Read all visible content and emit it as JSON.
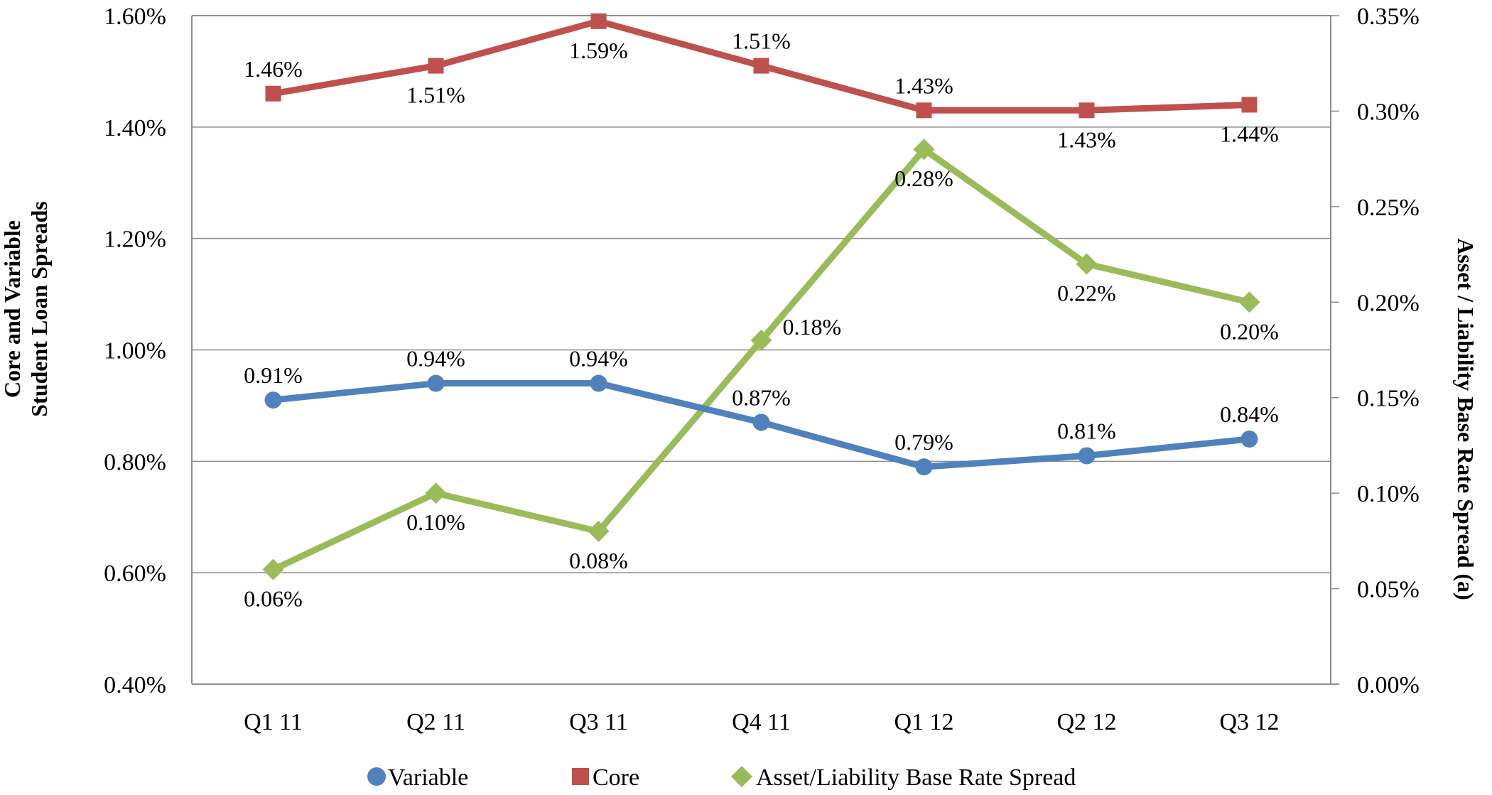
{
  "chart_data": {
    "type": "line",
    "title": "",
    "xlabel": "",
    "ylabel": [
      "Core and Variable",
      "Student Loan Spreads"
    ],
    "y2label": "Asset / Liability Base Rate Spread (a)",
    "categories": [
      "Q1 11",
      "Q2 11",
      "Q3 11",
      "Q4 11",
      "Q1 12",
      "Q2 12",
      "Q3 12"
    ],
    "ylim": [
      0.4,
      1.6
    ],
    "y_ticks": [
      0.4,
      0.6,
      0.8,
      1.0,
      1.2,
      1.4,
      1.6
    ],
    "y_tick_labels": [
      "0.40%",
      "0.60%",
      "0.80%",
      "1.00%",
      "1.20%",
      "1.40%",
      "1.60%"
    ],
    "y2lim": [
      0.0,
      0.35
    ],
    "y2_ticks": [
      0.0,
      0.05,
      0.1,
      0.15,
      0.2,
      0.25,
      0.3,
      0.35
    ],
    "y2_tick_labels": [
      "0.00%",
      "0.05%",
      "0.10%",
      "0.15%",
      "0.20%",
      "0.25%",
      "0.30%",
      "0.35%"
    ],
    "grid": true,
    "legend_position": "bottom",
    "series": [
      {
        "name": "Variable",
        "axis": "left",
        "color": "#4F81BD",
        "marker": "circle",
        "values": [
          0.91,
          0.94,
          0.94,
          0.87,
          0.79,
          0.81,
          0.84
        ],
        "labels": [
          "0.91%",
          "0.94%",
          "0.94%",
          "0.87%",
          "0.79%",
          "0.81%",
          "0.84%"
        ],
        "label_side": [
          "above",
          "above",
          "above",
          "above",
          "above",
          "above",
          "above"
        ]
      },
      {
        "name": "Core",
        "axis": "left",
        "color": "#C0504D",
        "marker": "square",
        "values": [
          1.46,
          1.51,
          1.59,
          1.51,
          1.43,
          1.43,
          1.44
        ],
        "labels": [
          "1.46%",
          "1.51%",
          "1.59%",
          "1.51%",
          "1.43%",
          "1.43%",
          "1.44%"
        ],
        "label_side": [
          "above",
          "below",
          "below",
          "above",
          "above",
          "below",
          "below"
        ]
      },
      {
        "name": "Asset/Liability Base Rate Spread",
        "axis": "right",
        "color": "#9BBB59",
        "marker": "diamond",
        "values": [
          0.06,
          0.1,
          0.08,
          0.18,
          0.28,
          0.22,
          0.2
        ],
        "labels": [
          "0.06%",
          "0.10%",
          "0.08%",
          "0.18%",
          "0.28%",
          "0.22%",
          "0.20%"
        ],
        "label_side": [
          "below",
          "below",
          "below",
          "right",
          "below",
          "below",
          "below"
        ]
      }
    ]
  }
}
